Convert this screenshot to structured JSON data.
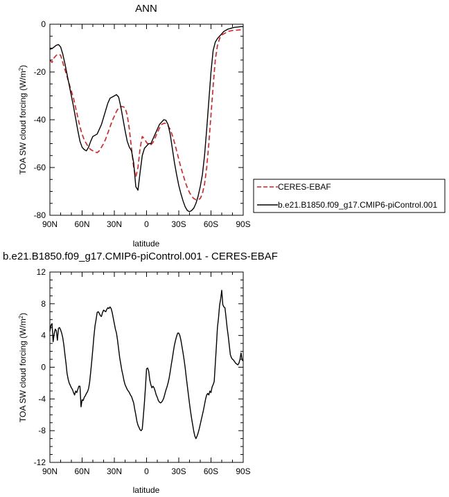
{
  "chart_data": [
    {
      "type": "line",
      "title": "ANN",
      "xlabel": "latitude",
      "ylabel_prefix": "TOA SW cloud forcing (W/m",
      "ylabel_sup": "2",
      "ylabel_suffix": ")",
      "xlim": [
        90,
        -90
      ],
      "ylim": [
        -80,
        0
      ],
      "xticks": [
        90,
        60,
        30,
        0,
        -30,
        -60,
        -90
      ],
      "xtick_labels": [
        "90N",
        "60N",
        "30N",
        "0",
        "30S",
        "60S",
        "90S"
      ],
      "yticks": [
        0,
        -20,
        -40,
        -60,
        -80
      ],
      "ytick_labels": [
        "0",
        "-20",
        "-40",
        "-60",
        "-80"
      ],
      "legend": "right",
      "series": [
        {
          "name": "CERES-EBAF",
          "color": "#e31a1c",
          "style": "dashed",
          "x": [
            90,
            88,
            86,
            84,
            82,
            80,
            78,
            76,
            74,
            72,
            70,
            68,
            66,
            64,
            62,
            60,
            58,
            56,
            54,
            52,
            50,
            48,
            46,
            44,
            42,
            40,
            38,
            36,
            34,
            32,
            30,
            28,
            26,
            24,
            22,
            20,
            18,
            16,
            14,
            12,
            10,
            8,
            6,
            4,
            2,
            0,
            -2,
            -4,
            -6,
            -8,
            -10,
            -12,
            -14,
            -16,
            -18,
            -20,
            -22,
            -24,
            -26,
            -28,
            -30,
            -32,
            -34,
            -36,
            -38,
            -40,
            -42,
            -44,
            -46,
            -48,
            -50,
            -52,
            -54,
            -56,
            -58,
            -60,
            -62,
            -64,
            -66,
            -68,
            -70,
            -72,
            -74,
            -76,
            -78,
            -80,
            -82,
            -84,
            -86,
            -88,
            -90
          ],
          "values": [
            -15,
            -16,
            -14,
            -13,
            -12.5,
            -13,
            -16,
            -19,
            -22,
            -25,
            -28,
            -31,
            -35,
            -39,
            -43,
            -46,
            -48.5,
            -50,
            -51.5,
            -52.5,
            -53,
            -53.5,
            -53.8,
            -53,
            -51.5,
            -50,
            -48,
            -45.5,
            -43,
            -40.5,
            -38.5,
            -36.5,
            -35,
            -34.5,
            -34.5,
            -35,
            -38,
            -44,
            -52,
            -60,
            -64,
            -60,
            -52,
            -47,
            -48,
            -49.5,
            -50.5,
            -50.5,
            -49.5,
            -47.5,
            -45.5,
            -43.5,
            -42,
            -41.5,
            -41.5,
            -42.5,
            -44,
            -46.5,
            -49.5,
            -53,
            -56.5,
            -60,
            -63,
            -66,
            -68.5,
            -70.5,
            -72,
            -73,
            -73.5,
            -73.5,
            -73,
            -71,
            -67,
            -60,
            -50,
            -38,
            -26,
            -15,
            -9,
            -6,
            -4.5,
            -4,
            -3.5,
            -3,
            -2.8,
            -2.6,
            -2.5,
            -2.5,
            -2.4,
            -2.3,
            -2.2
          ]
        },
        {
          "name": "b.e21.B1850.f09_g17.CMIP6-piControl.001",
          "color": "#000000",
          "style": "solid",
          "x": [
            90,
            88,
            86,
            84,
            82,
            80,
            78,
            76,
            74,
            72,
            70,
            68,
            66,
            64,
            62,
            60,
            58,
            56,
            54,
            52,
            50,
            48,
            46,
            44,
            42,
            40,
            38,
            36,
            34,
            32,
            30,
            28,
            26,
            24,
            22,
            20,
            18,
            16,
            14,
            12,
            10,
            8,
            6,
            4,
            2,
            0,
            -2,
            -4,
            -6,
            -8,
            -10,
            -12,
            -14,
            -16,
            -18,
            -20,
            -22,
            -24,
            -26,
            -28,
            -30,
            -32,
            -34,
            -36,
            -38,
            -40,
            -42,
            -44,
            -46,
            -48,
            -50,
            -52,
            -54,
            -56,
            -58,
            -60,
            -62,
            -64,
            -66,
            -68,
            -70,
            -72,
            -74,
            -76,
            -78,
            -80,
            -82,
            -84,
            -86,
            -88,
            -90
          ],
          "values": [
            -10.5,
            -10.2,
            -9.5,
            -8.8,
            -8.5,
            -9.5,
            -12.5,
            -16.5,
            -21,
            -25.5,
            -30,
            -34.5,
            -39.5,
            -44.5,
            -49,
            -51.5,
            -52.5,
            -53,
            -51.5,
            -49,
            -47,
            -46.5,
            -46,
            -44,
            -42,
            -39,
            -36,
            -33,
            -31,
            -30.5,
            -30,
            -29.5,
            -30.5,
            -34.5,
            -39.5,
            -44.5,
            -49,
            -51.5,
            -53,
            -58,
            -68,
            -69.5,
            -62,
            -55,
            -52,
            -51,
            -50,
            -50,
            -48,
            -46,
            -44,
            -42,
            -41,
            -40,
            -40.2,
            -42,
            -46,
            -52,
            -58,
            -63,
            -67.5,
            -71,
            -74,
            -76.5,
            -78,
            -78.5,
            -78,
            -77,
            -75,
            -72,
            -68,
            -63,
            -55,
            -44,
            -32,
            -20,
            -11,
            -7.5,
            -6,
            -5,
            -4,
            -3,
            -2.5,
            -2,
            -1.8,
            -1.5,
            -1.3,
            -1.2,
            -1.1,
            -1.0,
            -1.0
          ]
        }
      ]
    },
    {
      "type": "line",
      "title": "b.e21.B1850.f09_g17.CMIP6-piControl.001 - CERES-EBAF",
      "xlabel": "latitude",
      "ylabel": "TOA SW cloud forcing (W/m2)",
      "ylabel_prefix": "TOA SW cloud forcing (W/m",
      "ylabel_sup": "2",
      "ylabel_suffix": ")",
      "xlim": [
        90,
        -90
      ],
      "ylim": [
        -12,
        12
      ],
      "xticks": [
        90,
        60,
        30,
        0,
        -30,
        -60,
        -90
      ],
      "xtick_labels": [
        "90N",
        "60N",
        "30N",
        "0",
        "30S",
        "60S",
        "90S"
      ],
      "yticks": [
        12,
        8,
        4,
        0,
        -4,
        -8,
        -12
      ],
      "ytick_labels": [
        "12",
        "8",
        "4",
        "0",
        "-4",
        "-8",
        "-12"
      ],
      "series": [
        {
          "color": "#000000",
          "style": "solid",
          "x": [
            90,
            89,
            88,
            87,
            86,
            85,
            84,
            83,
            82,
            81,
            80,
            79,
            78,
            77,
            76,
            75,
            74,
            73,
            72,
            71,
            70,
            69,
            68,
            67,
            66,
            65,
            64,
            63,
            62,
            61,
            60,
            59,
            58,
            57,
            56,
            55,
            54,
            53,
            52,
            51,
            50,
            49,
            48,
            47,
            46,
            45,
            44,
            43,
            42,
            41,
            40,
            39,
            38,
            37,
            36,
            35,
            34,
            33,
            32,
            31,
            30,
            29,
            28,
            27,
            26,
            25,
            24,
            23,
            22,
            21,
            20,
            19,
            18,
            17,
            16,
            15,
            14,
            13,
            12,
            11,
            10,
            9,
            8,
            7,
            6,
            5,
            4,
            3,
            2,
            1,
            0,
            -1,
            -2,
            -3,
            -4,
            -5,
            -6,
            -7,
            -8,
            -9,
            -10,
            -11,
            -12,
            -13,
            -14,
            -15,
            -16,
            -17,
            -18,
            -19,
            -20,
            -21,
            -22,
            -23,
            -24,
            -25,
            -26,
            -27,
            -28,
            -29,
            -30,
            -31,
            -32,
            -33,
            -34,
            -35,
            -36,
            -37,
            -38,
            -39,
            -40,
            -41,
            -42,
            -43,
            -44,
            -45,
            -46,
            -47,
            -48,
            -49,
            -50,
            -51,
            -52,
            -53,
            -54,
            -55,
            -56,
            -57,
            -58,
            -59,
            -60,
            -61,
            -62,
            -63,
            -64,
            -65,
            -66,
            -67,
            -68,
            -69,
            -70,
            -71,
            -72,
            -73,
            -74,
            -75,
            -76,
            -77,
            -78,
            -79,
            -80,
            -81,
            -82,
            -83,
            -84,
            -85,
            -86,
            -87,
            -88,
            -89,
            -90
          ],
          "values": [
            4.5,
            5.3,
            5.5,
            3.2,
            4.2,
            4.8,
            4.6,
            3.4,
            4.9,
            5.0,
            4.7,
            4.3,
            3.7,
            2.8,
            1.6,
            0.5,
            -0.8,
            -1.5,
            -2.0,
            -2.3,
            -2.6,
            -2.8,
            -3.2,
            -3.5,
            -3.0,
            -3.2,
            -2.8,
            -2.4,
            -2.4,
            -5.0,
            -4.1,
            -4.2,
            -3.8,
            -3.6,
            -3.3,
            -3.1,
            -2.7,
            -1.9,
            -0.6,
            0.8,
            2.3,
            3.9,
            5.2,
            6.0,
            6.9,
            7.0,
            6.8,
            6.5,
            6.4,
            6.9,
            7.2,
            7.1,
            7.0,
            7.3,
            7.5,
            7.4,
            7.6,
            7.4,
            6.9,
            6.2,
            5.5,
            4.8,
            4.3,
            3.4,
            2.3,
            1.2,
            0.4,
            -0.4,
            -1.0,
            -1.7,
            -2.2,
            -2.5,
            -2.8,
            -3.0,
            -3.2,
            -3.5,
            -3.7,
            -4.1,
            -4.5,
            -5.3,
            -6.0,
            -6.8,
            -7.3,
            -7.6,
            -7.9,
            -8.0,
            -7.8,
            -6.2,
            -4.5,
            -2.5,
            -0.2,
            -0.1,
            -0.5,
            -1.6,
            -2.2,
            -2.6,
            -2.4,
            -2.6,
            -3.0,
            -3.5,
            -3.8,
            -4.2,
            -4.4,
            -4.5,
            -4.4,
            -4.2,
            -3.9,
            -3.4,
            -2.9,
            -2.5,
            -2.0,
            -1.4,
            -0.6,
            0.3,
            1.1,
            2.0,
            2.8,
            3.4,
            3.9,
            4.3,
            4.3,
            4.0,
            3.4,
            2.6,
            1.8,
            0.9,
            -0.1,
            -1.3,
            -2.4,
            -3.5,
            -4.6,
            -5.6,
            -6.5,
            -7.3,
            -8.1,
            -8.7,
            -9.0,
            -8.7,
            -8.3,
            -7.8,
            -7.2,
            -6.6,
            -6.0,
            -5.4,
            -4.7,
            -4.0,
            -3.5,
            -3.3,
            -3.5,
            -3.0,
            -3.2,
            -2.5,
            -2.2,
            -1.8,
            0.4,
            2.6,
            5.0,
            6.2,
            7.8,
            8.6,
            9.7,
            7.9,
            7.6,
            7.5,
            6.3,
            5.0,
            4.0,
            2.8,
            1.6,
            1.2,
            1.0,
            0.9,
            0.7,
            0.5,
            0.4,
            0.3,
            0.5,
            1.0,
            1.8,
            0.9,
            0.8
          ]
        }
      ]
    }
  ]
}
